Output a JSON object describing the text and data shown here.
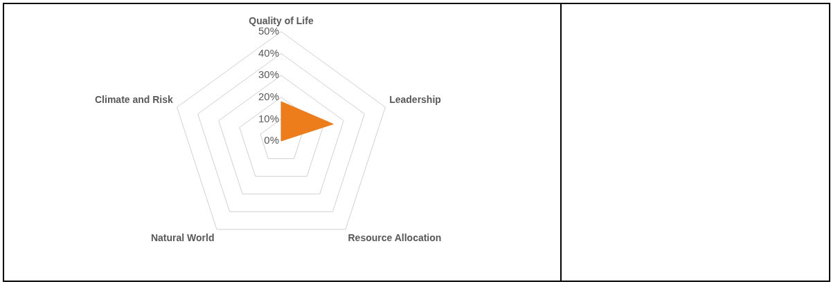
{
  "chart_data": {
    "type": "radar",
    "categories": [
      "Quality of Life",
      "Leadership",
      "Resource Allocation",
      "Natural World",
      "Climate and Risk"
    ],
    "series": [
      {
        "color": "#ed7d1a",
        "values": [
          18,
          25,
          0,
          0,
          0
        ]
      }
    ],
    "ylim": [
      0,
      50
    ],
    "yticks": [
      {
        "value": 0,
        "label": "0%"
      },
      {
        "value": 10,
        "label": "10%"
      },
      {
        "value": 20,
        "label": "20%"
      },
      {
        "value": 30,
        "label": "30%"
      },
      {
        "value": 40,
        "label": "40%"
      },
      {
        "value": 50,
        "label": "50%"
      }
    ],
    "grid": true,
    "legend": false
  }
}
